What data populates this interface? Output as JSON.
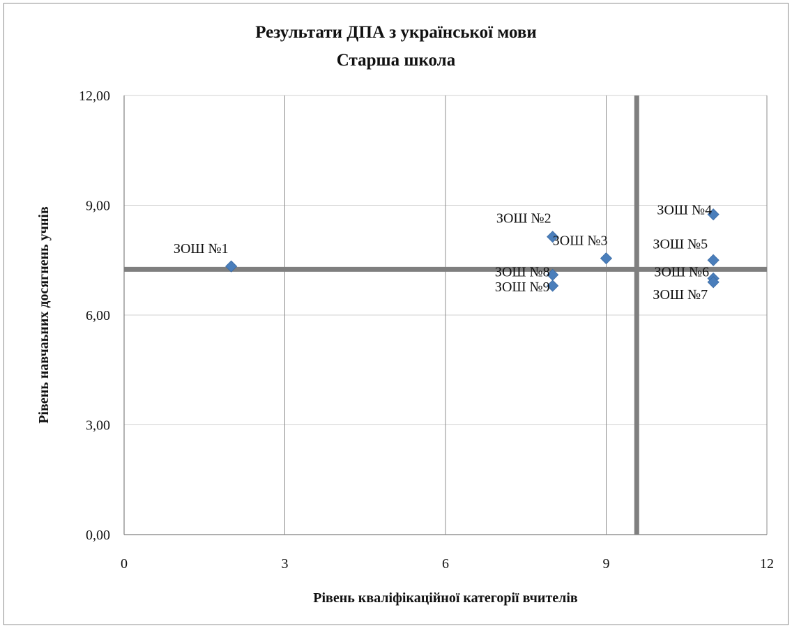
{
  "chart_data": {
    "type": "scatter",
    "title": "Результати ДПА з української мови",
    "subtitle": "Старша школа",
    "xlabel": "Рівень кваліфікаційної категорії вчителів",
    "ylabel": "Рівень навчаьних досягнень учнів",
    "xlim": [
      0,
      12
    ],
    "ylim": [
      0,
      12
    ],
    "x_ticks": [
      0,
      3,
      6,
      9,
      12
    ],
    "x_tick_labels": [
      "0",
      "3",
      "6",
      "9",
      "12"
    ],
    "y_ticks": [
      0,
      3,
      6,
      9,
      12
    ],
    "y_tick_labels": [
      "0,00",
      "3,00",
      "6,00",
      "9,00",
      "12,00"
    ],
    "grid": true,
    "legend": "none",
    "marker_color": "#4a7ebb",
    "reference_lines": {
      "vertical_x": 9.57,
      "horizontal_y": 7.25,
      "color": "#7f7f7f"
    },
    "points": [
      {
        "label": "ЗОШ №1",
        "x": 2,
        "y": 7.33
      },
      {
        "label": "ЗОШ №2",
        "x": 8,
        "y": 8.14
      },
      {
        "label": "ЗОШ №3",
        "x": 9,
        "y": 7.55
      },
      {
        "label": "ЗОШ №4",
        "x": 11,
        "y": 8.75
      },
      {
        "label": "ЗОШ №5",
        "x": 11,
        "y": 7.5
      },
      {
        "label": "ЗОШ №6",
        "x": 11,
        "y": 7.0
      },
      {
        "label": "ЗОШ №7",
        "x": 11,
        "y": 6.9
      },
      {
        "label": "ЗОШ №8",
        "x": 8,
        "y": 7.1
      },
      {
        "label": "ЗОШ №9",
        "x": 8,
        "y": 6.8
      }
    ]
  }
}
